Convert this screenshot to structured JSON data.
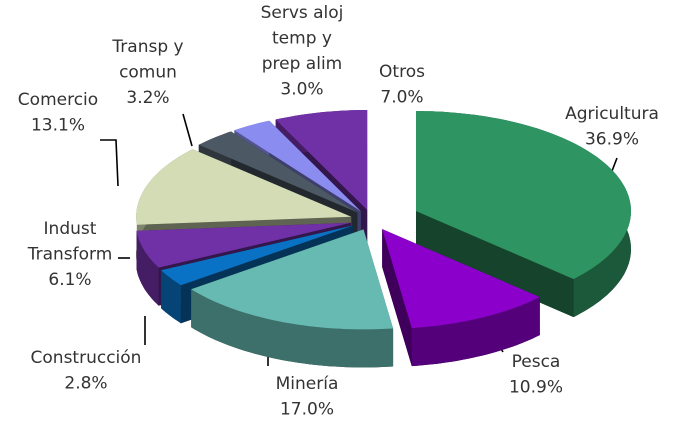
{
  "chart_data": {
    "type": "pie3d",
    "categories": [
      "Agricultura",
      "Pesca",
      "Minería",
      "Construcción",
      "Indust\nTransform",
      "Comercio",
      "Transp y\ncomun",
      "Servs aloj\ntemp y\nprep alim",
      "Otros"
    ],
    "values": [
      36.9,
      10.9,
      17.0,
      2.8,
      6.1,
      13.1,
      3.2,
      3.0,
      7.0
    ],
    "value_labels": [
      "36.9%",
      "10.9%",
      "17.0%",
      "2.8%",
      "6.1%",
      "13.1%",
      "3.2%",
      "3.0%",
      "7.0%"
    ],
    "colors": [
      "#2e9462",
      "#8c00cc",
      "#66bab2",
      "#0a72c4",
      "#7131a6",
      "#d3dcb4",
      "#4c5864",
      "#8a8cf0",
      "#7131a6"
    ]
  }
}
